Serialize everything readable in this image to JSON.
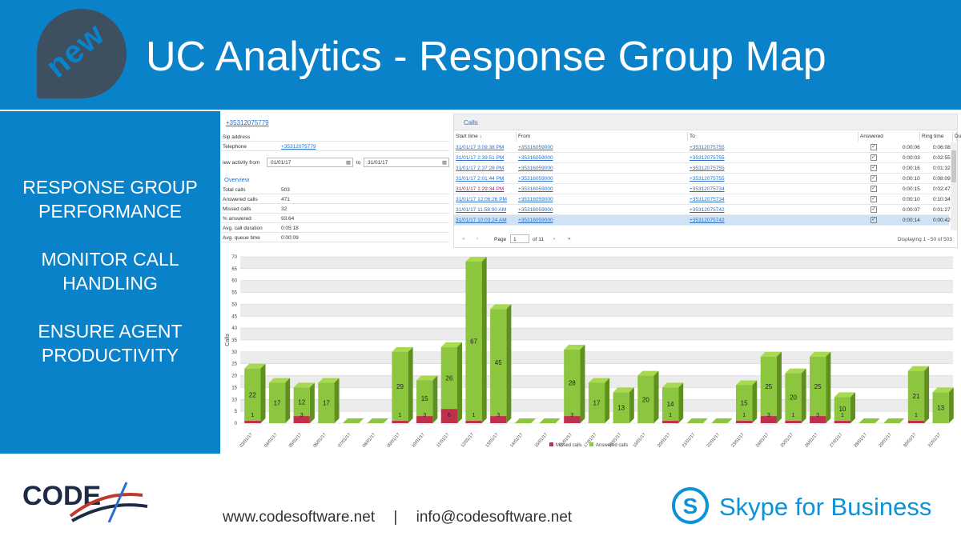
{
  "header": {
    "badge": "new",
    "title": "UC Analytics - Response Group Map"
  },
  "features": [
    "RESPONSE GROUP\nPERFORMANCE",
    "MONITOR CALL\nHANDLING",
    "ENSURE AGENT\nPRODUCTIVITY"
  ],
  "contact": {
    "phone_link": "+35312075779",
    "sip_label": "Sip address",
    "sip_value": "",
    "telephone_label": "Telephone",
    "telephone_value": "+35312075779",
    "activity_from_label": "iew activity from",
    "date_from": "01/01/17",
    "to_label": "to",
    "date_to": "31/01/17"
  },
  "overview": {
    "title": "Overview",
    "rows": [
      {
        "label": "Total calls",
        "value": "503"
      },
      {
        "label": "Answered calls",
        "value": "471"
      },
      {
        "label": "Missed calls",
        "value": "32"
      },
      {
        "label": "% answered",
        "value": "93.64"
      },
      {
        "label": "Avg. call duration",
        "value": "0:05:18"
      },
      {
        "label": "Avg. queue time",
        "value": "0:00:09"
      }
    ]
  },
  "calls": {
    "title": "Calls",
    "columns": [
      "Start time",
      "From",
      "To",
      "Answered",
      "Ring time",
      "Duration"
    ],
    "rows": [
      {
        "start": "31/01/17 3:09:38 PM",
        "from": "+35316059000",
        "to": "+35312075755",
        "ring": "0:00:06",
        "duration": "0:06:08"
      },
      {
        "start": "31/01/17 2:39:51 PM",
        "from": "+35316059000",
        "to": "+35312075755",
        "ring": "0:00:03",
        "duration": "0:02:55"
      },
      {
        "start": "31/01/17 2:37:28 PM",
        "from": "+35316059000",
        "to": "+35312075755",
        "ring": "0:00:16",
        "duration": "0:01:32"
      },
      {
        "start": "31/01/17 2:01:44 PM",
        "from": "+35316059000",
        "to": "+35312075755",
        "ring": "0:00:10",
        "duration": "0:08:09"
      },
      {
        "start": "31/01/17 1:29:34 PM",
        "from": "+35316059000",
        "to": "+35312075734",
        "ring": "0:00:15",
        "duration": "0:02:47"
      },
      {
        "start": "31/01/17 12:06:26 PM",
        "from": "+35316059000",
        "to": "+35312075734",
        "ring": "0:00:10",
        "duration": "0:10:34"
      },
      {
        "start": "31/01/17 11:58:00 AM",
        "from": "+35316059000",
        "to": "+35312075742",
        "ring": "0:00:07",
        "duration": "0:01:27"
      },
      {
        "start": "31/01/17 10:03:24 AM",
        "from": "+35316059000",
        "to": "+35312075742",
        "ring": "0:00:14",
        "duration": "0:00:42"
      }
    ],
    "pager": {
      "page_label": "Page",
      "page": "1",
      "of": "of 11",
      "display": "Displaying 1 - 50 of 503"
    }
  },
  "chart_data": {
    "type": "bar",
    "stacked": true,
    "ylabel": "Calls",
    "ylim": [
      0,
      70
    ],
    "yticks": [
      0,
      5,
      10,
      15,
      20,
      25,
      30,
      35,
      40,
      45,
      50,
      55,
      60,
      65,
      70
    ],
    "categories": [
      "03/01/17",
      "04/01/17",
      "05/01/17",
      "06/01/17",
      "07/01/17",
      "08/01/17",
      "09/01/17",
      "10/01/17",
      "11/01/17",
      "12/01/17",
      "13/01/17",
      "14/01/17",
      "15/01/17",
      "16/01/17",
      "17/01/17",
      "18/01/17",
      "19/01/17",
      "20/01/17",
      "21/01/17",
      "22/01/17",
      "23/01/17",
      "24/01/17",
      "25/01/17",
      "26/01/17",
      "27/01/17",
      "28/01/17",
      "29/01/17",
      "30/01/17",
      "31/01/17"
    ],
    "series": [
      {
        "name": "Missed calls",
        "color": "#c0304a",
        "values": [
          1,
          0,
          3,
          0,
          0,
          0,
          1,
          3,
          6,
          1,
          3,
          0,
          0,
          3,
          0,
          0,
          0,
          1,
          0,
          0,
          1,
          3,
          1,
          3,
          1,
          0,
          0,
          1,
          0
        ]
      },
      {
        "name": "Answered calls",
        "color": "#8cc63f",
        "values": [
          22,
          17,
          12,
          17,
          0,
          0,
          29,
          15,
          26,
          67,
          45,
          0,
          0,
          28,
          17,
          13,
          20,
          14,
          0,
          0,
          15,
          25,
          20,
          25,
          10,
          0,
          0,
          21,
          13
        ]
      }
    ],
    "legend": "bottom",
    "grid": true
  },
  "footer": {
    "code_logo": "CODE",
    "website": "www.codesoftware.net",
    "separator": "|",
    "email": "info@codesoftware.net",
    "skype_text": "Skype for Business",
    "skype_letter": "S"
  }
}
